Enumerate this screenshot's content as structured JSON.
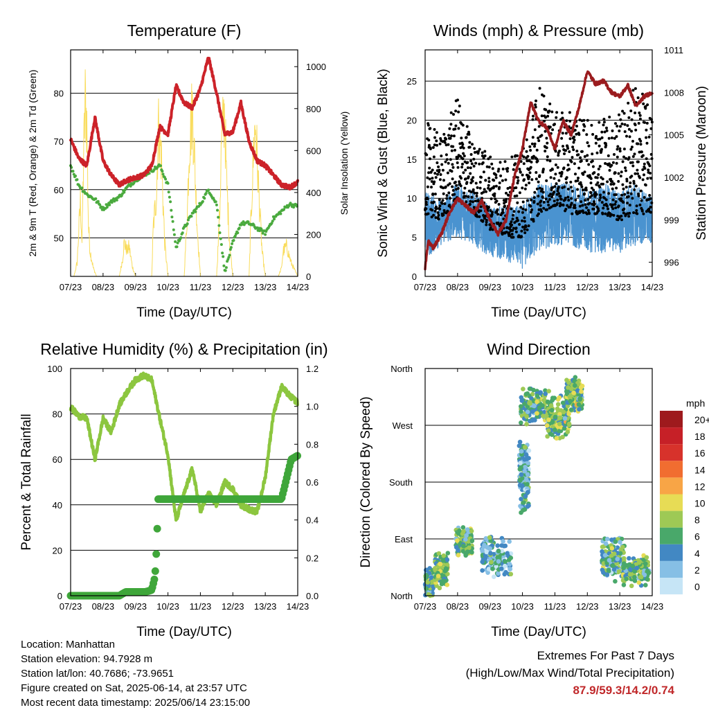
{
  "chart_data": [
    {
      "type": "line",
      "title": "Temperature (F)",
      "xlabel": "Time (Day/UTC)",
      "ylabel": "2m & 9m T (Red, Orange) & 2m Td (Green)",
      "y2label": "Solar Insolation (Yellow)",
      "x_ticks": [
        "07/23",
        "08/23",
        "09/23",
        "10/23",
        "11/23",
        "12/23",
        "13/23",
        "14/23"
      ],
      "ylim": [
        42,
        89
      ],
      "y_ticks": [
        50,
        60,
        70,
        80
      ],
      "y2lim": [
        0,
        1080
      ],
      "y2_ticks": [
        0,
        200,
        400,
        600,
        800,
        1000
      ],
      "grid": true,
      "colors": {
        "temperature": "#cc2229",
        "dewpoint": "#4aaa3e",
        "solar": "#f9dc5c"
      },
      "series": [
        {
          "axis": "left",
          "x": [
            0,
            0.25,
            0.5,
            0.75,
            1,
            1.25,
            1.5,
            1.75,
            2,
            2.25,
            2.5,
            2.75,
            3,
            3.25,
            3.5,
            3.75,
            4,
            4.25,
            4.5,
            4.75,
            5,
            5.25,
            5.5,
            5.75,
            6,
            6.25,
            6.5,
            6.75,
            7
          ],
          "values": [
            70.5,
            66.5,
            65,
            75,
            66,
            63,
            61,
            62,
            62.5,
            63,
            65,
            73,
            71.5,
            81.5,
            78,
            77,
            81,
            87.5,
            80,
            71.5,
            72,
            78,
            70,
            66,
            65,
            63,
            61,
            60.5,
            61.5
          ]
        },
        {
          "axis": "left",
          "x": [
            0,
            0.25,
            0.5,
            0.75,
            1,
            1.25,
            1.5,
            1.75,
            2,
            2.25,
            2.5,
            2.75,
            3,
            3.25,
            3.5,
            3.75,
            4,
            4.25,
            4.5,
            4.75,
            5,
            5.25,
            5.5,
            5.75,
            6,
            6.25,
            6.5,
            6.75,
            7
          ],
          "values": [
            65,
            61,
            59,
            58,
            56,
            57.5,
            58.5,
            60.5,
            62,
            63,
            64,
            65,
            61,
            48,
            52,
            55,
            57,
            60,
            57,
            43,
            49,
            53,
            53,
            52,
            51,
            54,
            55.5,
            57,
            56.5
          ]
        },
        {
          "axis": "right",
          "x": [
            0,
            0.1,
            0.2,
            0.3,
            0.35,
            0.4,
            0.45,
            0.5,
            0.55,
            0.6,
            0.7,
            0.8,
            1,
            1.5,
            1.6,
            1.65,
            1.75,
            1.8,
            1.9,
            2,
            2.5,
            2.55,
            2.65,
            2.7,
            2.8,
            2.9,
            3,
            3.5,
            3.6,
            3.65,
            3.75,
            3.8,
            3.9,
            4,
            4.5,
            4.6,
            4.65,
            4.75,
            4.8,
            4.9,
            5,
            5.5,
            5.55,
            5.65,
            5.7,
            5.8,
            5.9,
            6,
            6.4,
            6.5,
            6.55,
            6.65,
            6.8,
            7
          ],
          "values": [
            0,
            0,
            80,
            450,
            200,
            700,
            1050,
            900,
            300,
            150,
            50,
            0,
            0,
            0,
            100,
            200,
            150,
            180,
            60,
            0,
            0,
            300,
            500,
            900,
            700,
            200,
            0,
            0,
            400,
            750,
            1000,
            800,
            300,
            0,
            0,
            400,
            800,
            1000,
            600,
            200,
            0,
            0,
            300,
            800,
            900,
            500,
            150,
            0,
            0,
            50,
            150,
            180,
            80,
            0
          ]
        }
      ]
    },
    {
      "type": "scatter",
      "title": "Winds (mph) & Pressure (mb)",
      "xlabel": "Time (Day/UTC)",
      "ylabel": "Sonic Wind & Gust (Blue, Black)",
      "y2label": "Station Pressure (Maroon)",
      "x_ticks": [
        "07/23",
        "08/23",
        "09/23",
        "10/23",
        "11/23",
        "12/23",
        "13/23",
        "14/23"
      ],
      "ylim": [
        0,
        29
      ],
      "y_ticks": [
        0,
        5,
        10,
        15,
        20,
        25
      ],
      "y2lim": [
        995,
        1011
      ],
      "y2_ticks": [
        996,
        999,
        1002,
        1005,
        1008,
        1011
      ],
      "grid": true,
      "colors": {
        "wind": "#4a93d0",
        "gust": "#000000",
        "pressure": "#9b1c1f"
      },
      "series": [
        {
          "axis": "right",
          "x": [
            0,
            0.1,
            0.25,
            0.5,
            0.75,
            1,
            1.25,
            1.5,
            1.75,
            2,
            2.25,
            2.5,
            2.75,
            3,
            3.25,
            3.5,
            3.75,
            4,
            4.25,
            4.5,
            4.75,
            5,
            5.25,
            5.5,
            5.75,
            6,
            6.25,
            6.5,
            6.75,
            7
          ],
          "values": [
            995.6,
            997.5,
            997,
            998,
            999.5,
            1000.5,
            1000,
            999.5,
            1000.3,
            999,
            998,
            999,
            1002,
            1004,
            1007.3,
            1006,
            1005.5,
            1004,
            1006,
            1005,
            1007,
            1009.5,
            1008.6,
            1008.8,
            1008,
            1007.7,
            1008.5,
            1007,
            1007.7,
            1008
          ]
        }
      ],
      "wind_envelope": {
        "x": [
          0,
          0.5,
          1,
          1.5,
          2,
          2.5,
          3,
          3.5,
          4,
          4.5,
          5,
          5.5,
          6,
          6.5,
          7
        ],
        "low": [
          2,
          4,
          5,
          4,
          2.5,
          2,
          1,
          3,
          4,
          4,
          3,
          3,
          3,
          4,
          4
        ],
        "high": [
          11,
          10,
          12,
          11,
          9,
          9,
          9,
          12,
          12,
          12,
          11,
          12,
          11,
          12,
          10
        ]
      },
      "gust_envelope": {
        "x": [
          0,
          0.5,
          1,
          1.5,
          2,
          2.5,
          3,
          3.5,
          4,
          4.5,
          5,
          5.5,
          6,
          6.5,
          7
        ],
        "low": [
          8,
          7,
          10,
          8,
          6,
          5,
          5,
          8,
          9,
          8,
          8,
          8,
          7,
          8,
          8
        ],
        "high": [
          20,
          18,
          23,
          17,
          16,
          15,
          16,
          25,
          21,
          21,
          20,
          21,
          21,
          25,
          21
        ]
      }
    },
    {
      "type": "line",
      "title": "Relative Humidity (%) & Precipitation (in)",
      "xlabel": "Time (Day/UTC)",
      "ylabel": "Percent & Total Rainfall",
      "x_ticks": [
        "07/23",
        "08/23",
        "09/23",
        "10/23",
        "11/23",
        "12/23",
        "13/23",
        "14/23"
      ],
      "ylim": [
        0,
        100
      ],
      "y_ticks": [
        0,
        20,
        40,
        60,
        80,
        100
      ],
      "y2lim": [
        0,
        1.2
      ],
      "y2_ticks": [
        "0.0",
        "0.2",
        "0.4",
        "0.6",
        "0.8",
        "1.0",
        "1.2"
      ],
      "grid": true,
      "colors": {
        "humidity": "#8cc63f",
        "precipitation": "#3fa63a"
      },
      "series": [
        {
          "axis": "left",
          "x": [
            0,
            0.25,
            0.5,
            0.75,
            1,
            1.25,
            1.5,
            1.75,
            2,
            2.25,
            2.5,
            2.75,
            3,
            3.25,
            3.5,
            3.75,
            4,
            4.25,
            4.5,
            4.75,
            5,
            5.25,
            5.5,
            5.75,
            6,
            6.25,
            6.5,
            6.75,
            7
          ],
          "values": [
            83,
            79,
            78,
            60,
            78,
            72,
            84,
            90,
            95,
            97,
            95,
            78,
            62,
            33,
            45,
            56,
            37,
            45,
            40,
            50,
            47,
            40,
            38,
            37,
            52,
            80,
            92,
            88,
            85
          ]
        },
        {
          "axis": "right",
          "x": [
            0,
            0.5,
            1,
            1.5,
            1.7,
            2,
            2.3,
            2.5,
            2.6,
            2.65,
            2.7,
            3,
            4,
            5,
            6,
            6.5,
            6.6,
            6.8,
            7
          ],
          "values": [
            0,
            0,
            0,
            0,
            0.02,
            0.02,
            0.02,
            0.03,
            0.1,
            0.25,
            0.51,
            0.51,
            0.51,
            0.51,
            0.51,
            0.51,
            0.58,
            0.72,
            0.74
          ]
        }
      ]
    },
    {
      "type": "scatter",
      "title": "Wind Direction",
      "xlabel": "Time (Day/UTC)",
      "ylabel": "Direction (Colored By Speed)",
      "x_ticks": [
        "07/23",
        "08/23",
        "09/23",
        "10/23",
        "11/23",
        "12/23",
        "13/23",
        "14/23"
      ],
      "ylim": [
        0,
        360
      ],
      "y_ticks": [
        "North",
        "East",
        "South",
        "West",
        "North"
      ],
      "grid": true,
      "colorbar": {
        "unit": "mph",
        "labels": [
          "20+",
          "18",
          "16",
          "14",
          "12",
          "10",
          "8",
          "6",
          "4",
          "2",
          "0"
        ],
        "colors": [
          "#9e1a1d",
          "#c62027",
          "#d7322b",
          "#f16d30",
          "#f8a546",
          "#e7dc55",
          "#9ec955",
          "#49a86a",
          "#4288c3",
          "#86bfe5",
          "#c6e5f6"
        ]
      },
      "clusters": [
        {
          "x": 0.1,
          "dir": 20,
          "spread_x": 0.15,
          "spread_dir": 25,
          "speed": 6
        },
        {
          "x": 0.5,
          "dir": 40,
          "spread_x": 0.2,
          "spread_dir": 30,
          "speed": 7
        },
        {
          "x": 1.2,
          "dir": 85,
          "spread_x": 0.25,
          "spread_dir": 25,
          "speed": 6
        },
        {
          "x": 2.2,
          "dir": 60,
          "spread_x": 0.45,
          "spread_dir": 35,
          "speed": 4
        },
        {
          "x": 3.05,
          "dir": 190,
          "spread_x": 0.15,
          "spread_dir": 60,
          "speed": 4
        },
        {
          "x": 3.4,
          "dir": 300,
          "spread_x": 0.45,
          "spread_dir": 35,
          "speed": 6
        },
        {
          "x": 4.1,
          "dir": 280,
          "spread_x": 0.35,
          "spread_dir": 40,
          "speed": 7
        },
        {
          "x": 4.6,
          "dir": 320,
          "spread_x": 0.25,
          "spread_dir": 30,
          "speed": 7
        },
        {
          "x": 5.8,
          "dir": 60,
          "spread_x": 0.35,
          "spread_dir": 40,
          "speed": 5
        },
        {
          "x": 6.5,
          "dir": 40,
          "spread_x": 0.4,
          "spread_dir": 25,
          "speed": 6
        }
      ]
    }
  ],
  "info": {
    "location": "Location: Manhattan",
    "elevation": "Station elevation: 94.7928 m",
    "latlon": "Station lat/lon: 40.7686; -73.9651",
    "created": "Figure created on Sat, 2025-06-14, at 23:57 UTC",
    "recent": "Most recent data timestamp: 2025/06/14 23:15:00"
  },
  "extremes": {
    "title": "Extremes For Past 7 Days",
    "subtitle": "(High/Low/Max Wind/Total Precipitation)",
    "values": "87.9/59.3/14.2/0.74"
  }
}
